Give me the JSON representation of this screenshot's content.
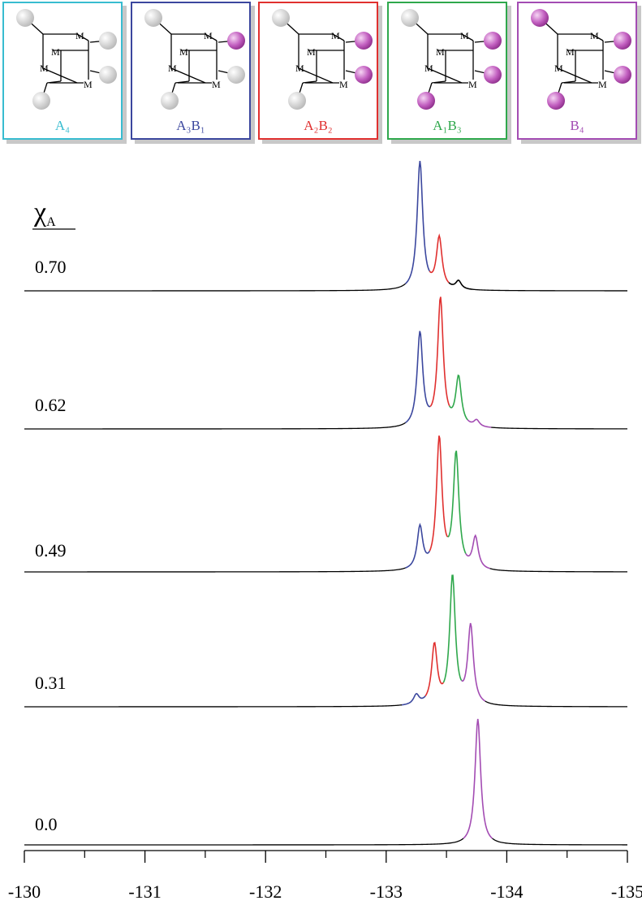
{
  "chart_data": {
    "type": "spectra",
    "legend_title": {
      "main": "χ",
      "sub": "A"
    },
    "species": [
      {
        "label": "A₄",
        "color": "#38bcd0"
      },
      {
        "label": "A₃B₁",
        "color": "#3b479e"
      },
      {
        "label": "A₂B₂",
        "color": "#e0302f"
      },
      {
        "label": "A₁B₃",
        "color": "#2fa84c"
      },
      {
        "label": "B₄",
        "color": "#a34cb3"
      }
    ],
    "cube_label": "M",
    "xlim": [
      -130,
      -135
    ],
    "xticks": [
      -130,
      -131,
      -132,
      -133,
      -134,
      -135
    ],
    "xminorticks": [
      -130.5,
      -131.5,
      -132.5,
      -133.5,
      -134.5
    ],
    "series": [
      {
        "name": "0.70",
        "peaks": [
          {
            "x": -133.28,
            "height": 158,
            "color": "#3b479e"
          },
          {
            "x": -133.44,
            "height": 63,
            "color": "#e0302f"
          },
          {
            "x": -133.6,
            "height": 10,
            "color": "#000000"
          }
        ]
      },
      {
        "name": "0.62",
        "peaks": [
          {
            "x": -133.28,
            "height": 116,
            "color": "#3b479e"
          },
          {
            "x": -133.45,
            "height": 158,
            "color": "#e0302f"
          },
          {
            "x": -133.6,
            "height": 60,
            "color": "#2fa84c"
          },
          {
            "x": -133.75,
            "height": 8,
            "color": "#a34cb3"
          }
        ]
      },
      {
        "name": "0.49",
        "peaks": [
          {
            "x": -133.28,
            "height": 52,
            "color": "#3b479e"
          },
          {
            "x": -133.44,
            "height": 161,
            "color": "#e0302f"
          },
          {
            "x": -133.58,
            "height": 142,
            "color": "#2fa84c"
          },
          {
            "x": -133.74,
            "height": 39,
            "color": "#a34cb3"
          }
        ]
      },
      {
        "name": "0.31",
        "peaks": [
          {
            "x": -133.25,
            "height": 12,
            "color": "#3b479e"
          },
          {
            "x": -133.4,
            "height": 73,
            "color": "#e0302f"
          },
          {
            "x": -133.55,
            "height": 158,
            "color": "#2fa84c"
          },
          {
            "x": -133.7,
            "height": 97,
            "color": "#a34cb3"
          }
        ]
      },
      {
        "name": "0.0",
        "peaks": [
          {
            "x": -133.76,
            "height": 155,
            "color": "#a34cb3"
          }
        ]
      }
    ]
  }
}
